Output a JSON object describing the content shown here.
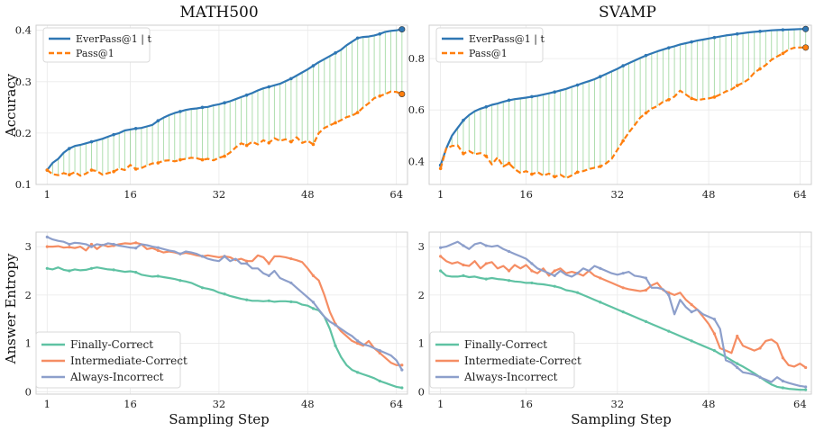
{
  "chart_data": [
    {
      "id": "math_acc",
      "type": "line",
      "title": "MATH500",
      "ylabel": "Accuracy",
      "xlabel": "",
      "xlim": [
        -1,
        66
      ],
      "ylim": [
        0.1,
        0.41
      ],
      "xticks": [
        1,
        16,
        32,
        48,
        64
      ],
      "yticks": [
        0.1,
        0.2,
        0.3,
        0.4
      ],
      "ytick_labels": [
        "0.1",
        "0.2",
        "0.3",
        "0.4"
      ],
      "legend_loc": "top-left",
      "fill_between": true,
      "series": [
        {
          "name": "EverPass@1 | t",
          "color": "#2f77b4",
          "style": "solid",
          "values": [
            0.128,
            0.142,
            0.15,
            0.162,
            0.17,
            0.175,
            0.177,
            0.18,
            0.183,
            0.186,
            0.189,
            0.193,
            0.197,
            0.2,
            0.205,
            0.207,
            0.209,
            0.21,
            0.213,
            0.216,
            0.224,
            0.23,
            0.235,
            0.239,
            0.242,
            0.245,
            0.247,
            0.248,
            0.25,
            0.251,
            0.254,
            0.256,
            0.259,
            0.262,
            0.266,
            0.27,
            0.274,
            0.278,
            0.283,
            0.287,
            0.29,
            0.293,
            0.296,
            0.301,
            0.306,
            0.312,
            0.318,
            0.324,
            0.331,
            0.338,
            0.344,
            0.35,
            0.356,
            0.362,
            0.371,
            0.378,
            0.385,
            0.387,
            0.388,
            0.39,
            0.393,
            0.397,
            0.399,
            0.4,
            0.402
          ]
        },
        {
          "name": "Pass@1",
          "color": "#ff7f0e",
          "style": "dashed",
          "values": [
            0.128,
            0.12,
            0.118,
            0.122,
            0.119,
            0.124,
            0.117,
            0.121,
            0.128,
            0.126,
            0.119,
            0.122,
            0.125,
            0.131,
            0.128,
            0.138,
            0.13,
            0.132,
            0.137,
            0.141,
            0.142,
            0.146,
            0.147,
            0.145,
            0.148,
            0.15,
            0.152,
            0.151,
            0.148,
            0.15,
            0.147,
            0.152,
            0.155,
            0.162,
            0.172,
            0.18,
            0.176,
            0.183,
            0.178,
            0.186,
            0.181,
            0.19,
            0.185,
            0.188,
            0.183,
            0.192,
            0.181,
            0.185,
            0.178,
            0.2,
            0.21,
            0.215,
            0.22,
            0.225,
            0.231,
            0.234,
            0.24,
            0.25,
            0.258,
            0.268,
            0.272,
            0.276,
            0.281,
            0.28,
            0.276
          ]
        }
      ]
    },
    {
      "id": "svamp_acc",
      "type": "line",
      "title": "SVAMP",
      "ylabel": "",
      "xlabel": "",
      "xlim": [
        -1,
        66
      ],
      "ylim": [
        0.31,
        0.93
      ],
      "xticks": [
        1,
        16,
        32,
        48,
        64
      ],
      "yticks": [
        0.4,
        0.6,
        0.8
      ],
      "ytick_labels": [
        "0.4",
        "0.6",
        "0.8"
      ],
      "legend_loc": "top-left",
      "fill_between": true,
      "series": [
        {
          "name": "EverPass@1 | t",
          "color": "#2f77b4",
          "style": "solid",
          "values": [
            0.385,
            0.45,
            0.5,
            0.53,
            0.56,
            0.58,
            0.595,
            0.605,
            0.612,
            0.62,
            0.625,
            0.632,
            0.638,
            0.642,
            0.645,
            0.648,
            0.652,
            0.655,
            0.66,
            0.665,
            0.67,
            0.676,
            0.682,
            0.69,
            0.697,
            0.705,
            0.712,
            0.72,
            0.73,
            0.74,
            0.75,
            0.76,
            0.772,
            0.782,
            0.792,
            0.802,
            0.812,
            0.82,
            0.828,
            0.835,
            0.842,
            0.848,
            0.855,
            0.86,
            0.865,
            0.87,
            0.874,
            0.878,
            0.882,
            0.886,
            0.89,
            0.893,
            0.896,
            0.899,
            0.902,
            0.904,
            0.906,
            0.908,
            0.91,
            0.911,
            0.912,
            0.913,
            0.914,
            0.915,
            0.915
          ]
        },
        {
          "name": "Pass@1",
          "color": "#ff7f0e",
          "style": "dashed",
          "values": [
            0.372,
            0.45,
            0.46,
            0.462,
            0.43,
            0.44,
            0.428,
            0.432,
            0.42,
            0.388,
            0.415,
            0.38,
            0.392,
            0.37,
            0.355,
            0.362,
            0.35,
            0.358,
            0.345,
            0.352,
            0.34,
            0.348,
            0.335,
            0.345,
            0.358,
            0.362,
            0.37,
            0.375,
            0.38,
            0.392,
            0.41,
            0.445,
            0.48,
            0.512,
            0.54,
            0.57,
            0.588,
            0.605,
            0.615,
            0.632,
            0.64,
            0.652,
            0.675,
            0.66,
            0.645,
            0.638,
            0.642,
            0.645,
            0.65,
            0.66,
            0.672,
            0.68,
            0.695,
            0.705,
            0.72,
            0.745,
            0.76,
            0.775,
            0.795,
            0.808,
            0.82,
            0.835,
            0.842,
            0.843,
            0.843
          ]
        }
      ]
    },
    {
      "id": "math_ent",
      "type": "line",
      "title": "",
      "ylabel": "Answer Entropy",
      "xlabel": "Sampling Step",
      "xlim": [
        -1,
        66
      ],
      "ylim": [
        -0.05,
        3.3
      ],
      "xticks": [
        1,
        16,
        32,
        48,
        64
      ],
      "yticks": [
        0,
        1,
        2,
        3
      ],
      "ytick_labels": [
        "0",
        "1",
        "2",
        "3"
      ],
      "legend_loc": "bottom-left",
      "fill_between": false,
      "series": [
        {
          "name": "Finally-Correct",
          "color": "#5fc2a3",
          "style": "solid",
          "values": [
            2.55,
            2.53,
            2.57,
            2.52,
            2.5,
            2.53,
            2.51,
            2.52,
            2.55,
            2.57,
            2.55,
            2.53,
            2.52,
            2.5,
            2.48,
            2.49,
            2.47,
            2.42,
            2.4,
            2.38,
            2.39,
            2.37,
            2.35,
            2.33,
            2.3,
            2.28,
            2.25,
            2.2,
            2.15,
            2.13,
            2.1,
            2.05,
            2.02,
            1.98,
            1.95,
            1.92,
            1.9,
            1.88,
            1.88,
            1.87,
            1.88,
            1.86,
            1.87,
            1.87,
            1.86,
            1.85,
            1.8,
            1.78,
            1.72,
            1.68,
            1.55,
            1.3,
            0.95,
            0.72,
            0.55,
            0.45,
            0.4,
            0.36,
            0.32,
            0.28,
            0.22,
            0.18,
            0.14,
            0.1,
            0.08
          ]
        },
        {
          "name": "Intermediate-Correct",
          "color": "#f58d63",
          "style": "solid",
          "values": [
            3.0,
            3.0,
            3.01,
            2.98,
            2.99,
            2.97,
            3.0,
            2.92,
            3.05,
            2.95,
            3.04,
            3.0,
            3.02,
            3.05,
            3.07,
            3.06,
            3.08,
            3.05,
            2.95,
            2.97,
            2.92,
            2.88,
            2.9,
            2.88,
            2.85,
            2.87,
            2.85,
            2.82,
            2.8,
            2.82,
            2.8,
            2.78,
            2.8,
            2.78,
            2.72,
            2.75,
            2.7,
            2.7,
            2.82,
            2.78,
            2.65,
            2.8,
            2.8,
            2.78,
            2.75,
            2.72,
            2.68,
            2.55,
            2.4,
            2.3,
            2.0,
            1.65,
            1.4,
            1.25,
            1.15,
            1.05,
            1.0,
            0.95,
            1.05,
            0.9,
            0.8,
            0.7,
            0.6,
            0.55,
            0.55
          ]
        },
        {
          "name": "Always-Incorrect",
          "color": "#8d9fcb",
          "style": "solid",
          "values": [
            3.2,
            3.15,
            3.12,
            3.1,
            3.05,
            3.08,
            3.07,
            3.05,
            3.0,
            3.05,
            3.03,
            3.07,
            3.05,
            3.02,
            3.0,
            2.98,
            2.97,
            3.05,
            3.03,
            3.0,
            2.98,
            2.95,
            2.92,
            2.9,
            2.85,
            2.9,
            2.88,
            2.85,
            2.8,
            2.75,
            2.72,
            2.7,
            2.8,
            2.7,
            2.75,
            2.65,
            2.65,
            2.55,
            2.55,
            2.45,
            2.4,
            2.5,
            2.35,
            2.3,
            2.25,
            2.15,
            2.05,
            1.95,
            1.85,
            1.7,
            1.55,
            1.45,
            1.38,
            1.3,
            1.22,
            1.15,
            1.05,
            0.98,
            0.95,
            0.9,
            0.85,
            0.8,
            0.75,
            0.65,
            0.45
          ]
        }
      ]
    },
    {
      "id": "svamp_ent",
      "type": "line",
      "title": "",
      "ylabel": "",
      "xlabel": "Sampling Step",
      "xlim": [
        -1,
        66
      ],
      "ylim": [
        -0.05,
        3.3
      ],
      "xticks": [
        1,
        16,
        32,
        48,
        64
      ],
      "yticks": [
        0,
        1,
        2,
        3
      ],
      "ytick_labels": [
        "0",
        "1",
        "2",
        "3"
      ],
      "legend_loc": "bottom-left",
      "fill_between": false,
      "series": [
        {
          "name": "Finally-Correct",
          "color": "#5fc2a3",
          "style": "solid",
          "values": [
            2.5,
            2.4,
            2.38,
            2.38,
            2.4,
            2.37,
            2.38,
            2.35,
            2.33,
            2.35,
            2.33,
            2.32,
            2.3,
            2.28,
            2.27,
            2.25,
            2.25,
            2.23,
            2.22,
            2.2,
            2.18,
            2.15,
            2.1,
            2.08,
            2.05,
            2.0,
            1.95,
            1.9,
            1.85,
            1.8,
            1.75,
            1.7,
            1.65,
            1.6,
            1.55,
            1.5,
            1.45,
            1.4,
            1.35,
            1.3,
            1.25,
            1.2,
            1.15,
            1.1,
            1.05,
            1.0,
            0.95,
            0.9,
            0.85,
            0.78,
            0.72,
            0.65,
            0.58,
            0.52,
            0.45,
            0.38,
            0.3,
            0.22,
            0.15,
            0.1,
            0.08,
            0.06,
            0.05,
            0.04,
            0.04
          ]
        },
        {
          "name": "Intermediate-Correct",
          "color": "#f58d63",
          "style": "solid",
          "values": [
            2.8,
            2.7,
            2.65,
            2.68,
            2.62,
            2.6,
            2.7,
            2.55,
            2.65,
            2.68,
            2.55,
            2.6,
            2.5,
            2.62,
            2.55,
            2.62,
            2.5,
            2.45,
            2.55,
            2.4,
            2.5,
            2.55,
            2.45,
            2.48,
            2.45,
            2.4,
            2.5,
            2.4,
            2.35,
            2.3,
            2.25,
            2.2,
            2.15,
            2.12,
            2.1,
            2.08,
            2.1,
            2.2,
            2.25,
            2.1,
            2.05,
            2.0,
            2.05,
            1.9,
            1.8,
            1.7,
            1.55,
            1.4,
            1.2,
            0.9,
            0.85,
            0.8,
            1.15,
            0.95,
            0.9,
            0.85,
            0.9,
            1.05,
            1.08,
            1.0,
            0.7,
            0.55,
            0.52,
            0.58,
            0.5
          ]
        },
        {
          "name": "Always-Incorrect",
          "color": "#8d9fcb",
          "style": "solid",
          "values": [
            2.98,
            3.0,
            3.05,
            3.1,
            3.02,
            2.95,
            3.05,
            3.08,
            3.02,
            3.0,
            3.02,
            2.95,
            2.9,
            2.85,
            2.8,
            2.75,
            2.65,
            2.55,
            2.5,
            2.45,
            2.4,
            2.5,
            2.42,
            2.38,
            2.45,
            2.55,
            2.5,
            2.6,
            2.55,
            2.5,
            2.45,
            2.42,
            2.45,
            2.48,
            2.4,
            2.38,
            2.35,
            2.15,
            2.15,
            2.12,
            2.0,
            1.6,
            1.9,
            1.75,
            1.65,
            1.7,
            1.6,
            1.55,
            1.5,
            1.3,
            0.65,
            0.6,
            0.5,
            0.4,
            0.38,
            0.35,
            0.3,
            0.25,
            0.2,
            0.3,
            0.22,
            0.18,
            0.15,
            0.12,
            0.1
          ]
        }
      ]
    }
  ]
}
